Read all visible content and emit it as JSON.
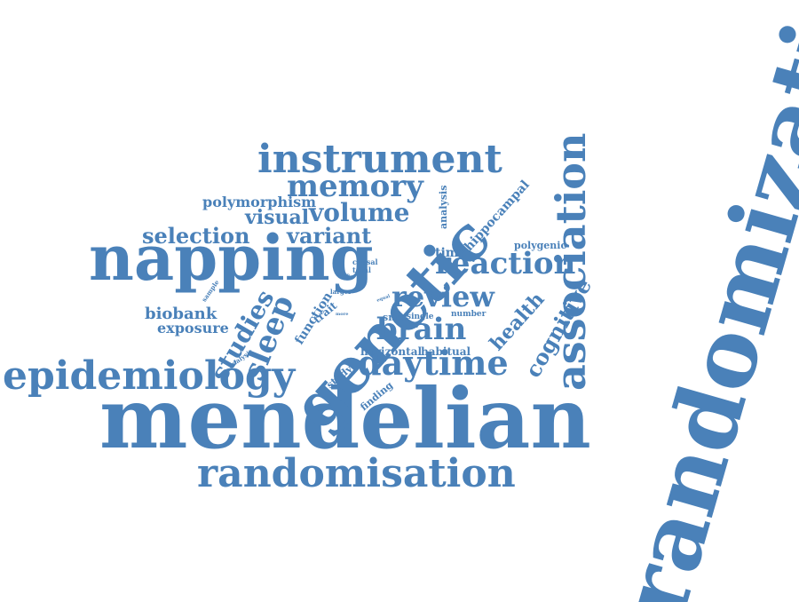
{
  "words": {
    "randomization": "randomization",
    "mendelian": "mendelian",
    "napping": "napping",
    "genetic": "genetic",
    "instrument": "instrument",
    "randomisation": "randomisation",
    "epidemiology": "epidemiology",
    "association": "association",
    "daytime": "daytime",
    "memory": "memory",
    "volume": "volume",
    "reaction": "reaction",
    "review": "review",
    "brain": "brain",
    "sleep": "sleep",
    "studies": "studies",
    "selection": "selection",
    "variant": "variant",
    "visual": "visual",
    "polymorphism": "polymorphism",
    "biobank": "biobank",
    "exposure": "exposure",
    "cognitive": "cognitive",
    "health": "health",
    "hippocampal": "hippocampal",
    "time": "time",
    "polygenic": "polygenic",
    "analysis_vertical": "analysis",
    "function": "function",
    "trait": "trait",
    "study": "study",
    "finding": "finding",
    "horizontal": "horizontal",
    "habitual": "habitual",
    "snps": "snps",
    "single": "single",
    "number": "number",
    "causal": "causal",
    "total": "total",
    "larger": "larger",
    "main": "main",
    "more": "more",
    "equal": "equal",
    "sample": "sample",
    "analysis_small": "analysis"
  },
  "text_color": "#4a81b9",
  "background_color": "#ffffff"
}
